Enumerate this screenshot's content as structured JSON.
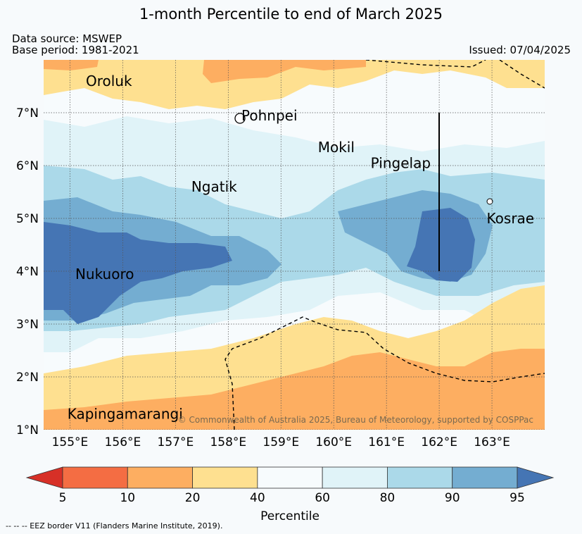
{
  "title": "1-month Percentile to end of March 2025",
  "data_source": "Data source: MSWEP",
  "base_period": "Base period: 1981-2021",
  "issued": "Issued: 07/04/2025",
  "copyright": "© Commonwealth of Australia 2025, Bureau of Meteorology, supported by COSPPac",
  "map": {
    "lon_range": [
      154.5,
      164.0
    ],
    "lat_range": [
      1.0,
      8.0
    ],
    "lon_ticks": [
      "155°E",
      "156°E",
      "157°E",
      "158°E",
      "159°E",
      "160°E",
      "161°E",
      "162°E",
      "163°E"
    ],
    "lat_ticks": [
      "1°N",
      "2°N",
      "3°N",
      "4°N",
      "5°N",
      "6°N",
      "7°N"
    ],
    "places": [
      {
        "name": "Oroluk",
        "lon": 155.3,
        "lat": 7.6
      },
      {
        "name": "Pohnpei",
        "lon": 158.25,
        "lat": 6.95
      },
      {
        "name": "Mokil",
        "lon": 159.7,
        "lat": 6.35
      },
      {
        "name": "Pingelap",
        "lon": 160.7,
        "lat": 6.05
      },
      {
        "name": "Ngatik",
        "lon": 157.3,
        "lat": 5.6
      },
      {
        "name": "Kosrae",
        "lon": 162.9,
        "lat": 5.0
      },
      {
        "name": "Nukuoro",
        "lon": 155.1,
        "lat": 3.95
      },
      {
        "name": "Kapingamarangi",
        "lon": 154.95,
        "lat": 1.3
      }
    ]
  },
  "colorbar": {
    "label": "Percentile",
    "ticks": [
      "5",
      "10",
      "20",
      "40",
      "60",
      "80",
      "90",
      "95"
    ],
    "colors": [
      "#d73027",
      "#f46d43",
      "#fdae61",
      "#fee090",
      "#f7fbfd",
      "#e0f3f8",
      "#abd9e9",
      "#74add1",
      "#4575b4"
    ]
  },
  "eez_note": "--  --  -- EEZ border V11 (Flanders Marine Institute, 2019)."
}
